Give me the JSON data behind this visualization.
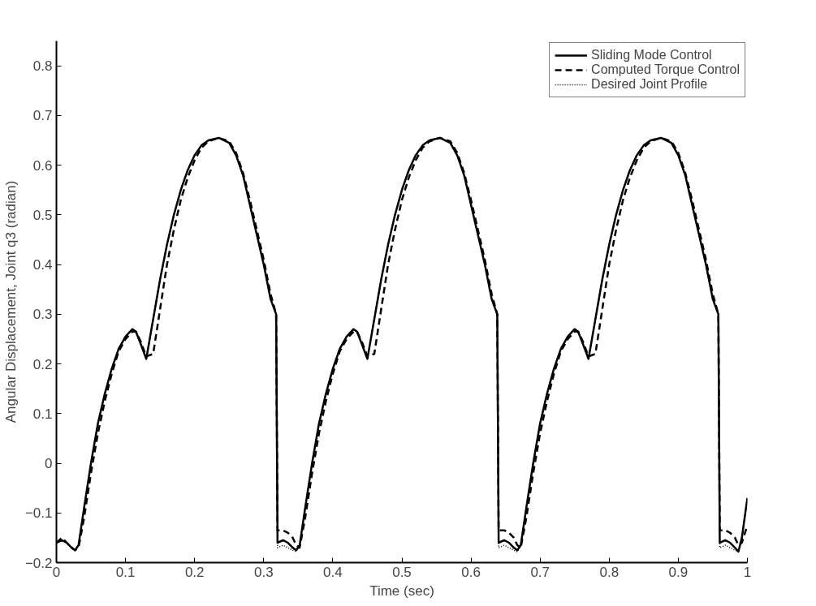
{
  "chart_data": {
    "type": "line",
    "xlabel": "Time (sec)",
    "ylabel": "Angular Displacement, Joint q3 (radian)",
    "xlim": [
      0,
      1
    ],
    "ylim": [
      -0.2,
      0.85
    ],
    "xticks": [
      0,
      0.1,
      0.2,
      0.3,
      0.4,
      0.5,
      0.6,
      0.7,
      0.8,
      0.9,
      1
    ],
    "yticks": [
      -0.2,
      -0.1,
      0,
      0.1,
      0.2,
      0.3,
      0.4,
      0.5,
      0.6,
      0.7,
      0.8
    ],
    "grid": false,
    "legend": "top right",
    "marker": "none",
    "x": [
      0,
      0.008,
      0.015,
      0.022,
      0.027,
      0.032,
      0.04,
      0.05,
      0.06,
      0.07,
      0.08,
      0.09,
      0.1,
      0.11,
      0.115,
      0.122,
      0.13,
      0.14,
      0.15,
      0.16,
      0.17,
      0.18,
      0.19,
      0.2,
      0.21,
      0.22,
      0.235,
      0.25,
      0.26,
      0.27,
      0.28,
      0.29,
      0.3,
      0.31,
      0.318,
      0.32,
      0.328,
      0.335,
      0.342,
      0.347,
      0.352,
      0.36,
      0.37,
      0.38,
      0.39,
      0.4,
      0.41,
      0.42,
      0.43,
      0.435,
      0.442,
      0.45,
      0.46,
      0.47,
      0.48,
      0.49,
      0.5,
      0.51,
      0.52,
      0.53,
      0.54,
      0.555,
      0.57,
      0.58,
      0.59,
      0.6,
      0.61,
      0.62,
      0.63,
      0.638,
      0.64,
      0.648,
      0.655,
      0.662,
      0.667,
      0.672,
      0.68,
      0.69,
      0.7,
      0.71,
      0.72,
      0.73,
      0.74,
      0.75,
      0.755,
      0.762,
      0.77,
      0.78,
      0.79,
      0.8,
      0.81,
      0.82,
      0.83,
      0.84,
      0.85,
      0.86,
      0.875,
      0.89,
      0.9,
      0.91,
      0.92,
      0.93,
      0.94,
      0.95,
      0.958,
      0.96,
      0.968,
      0.975,
      0.982,
      0.987,
      0.992,
      1.0
    ],
    "series": [
      {
        "name": "Sliding Mode Control",
        "color": "#000000",
        "line_style": "solid",
        "values": [
          -0.16,
          -0.155,
          -0.16,
          -0.17,
          -0.175,
          -0.165,
          -0.09,
          0,
          0.08,
          0.14,
          0.19,
          0.23,
          0.255,
          0.27,
          0.265,
          0.24,
          0.21,
          0.29,
          0.37,
          0.44,
          0.5,
          0.55,
          0.59,
          0.62,
          0.64,
          0.65,
          0.655,
          0.645,
          0.62,
          0.58,
          0.52,
          0.46,
          0.4,
          0.33,
          0.3,
          -0.16,
          -0.155,
          -0.16,
          -0.17,
          -0.175,
          -0.165,
          -0.09,
          0,
          0.08,
          0.14,
          0.19,
          0.23,
          0.255,
          0.27,
          0.265,
          0.24,
          0.21,
          0.29,
          0.37,
          0.44,
          0.5,
          0.55,
          0.59,
          0.62,
          0.64,
          0.65,
          0.655,
          0.645,
          0.62,
          0.58,
          0.52,
          0.46,
          0.4,
          0.33,
          0.3,
          -0.16,
          -0.155,
          -0.16,
          -0.17,
          -0.175,
          -0.165,
          -0.09,
          0,
          0.08,
          0.14,
          0.19,
          0.23,
          0.255,
          0.27,
          0.265,
          0.24,
          0.21,
          0.29,
          0.37,
          0.44,
          0.5,
          0.55,
          0.59,
          0.62,
          0.64,
          0.65,
          0.655,
          0.645,
          0.62,
          0.58,
          0.52,
          0.46,
          0.4,
          0.33,
          0.3,
          -0.16,
          -0.155,
          -0.16,
          -0.17,
          -0.178,
          -0.15,
          -0.07
        ]
      },
      {
        "name": "Computed Torque Control",
        "color": "#000000",
        "line_style": "dashed",
        "values": [
          -0.16,
          -0.15,
          -0.16,
          -0.17,
          -0.175,
          -0.17,
          -0.11,
          -0.02,
          0.06,
          0.125,
          0.18,
          0.225,
          0.25,
          0.265,
          0.265,
          0.245,
          0.215,
          0.22,
          0.31,
          0.4,
          0.47,
          0.53,
          0.575,
          0.61,
          0.635,
          0.648,
          0.655,
          0.648,
          0.625,
          0.585,
          0.53,
          0.47,
          0.41,
          0.34,
          0.3,
          -0.135,
          -0.135,
          -0.14,
          -0.15,
          -0.165,
          -0.17,
          -0.11,
          -0.02,
          0.06,
          0.125,
          0.18,
          0.225,
          0.25,
          0.265,
          0.265,
          0.245,
          0.215,
          0.22,
          0.31,
          0.4,
          0.47,
          0.53,
          0.575,
          0.61,
          0.635,
          0.648,
          0.655,
          0.648,
          0.625,
          0.585,
          0.53,
          0.47,
          0.41,
          0.34,
          0.3,
          -0.135,
          -0.135,
          -0.14,
          -0.15,
          -0.165,
          -0.17,
          -0.11,
          -0.02,
          0.06,
          0.125,
          0.18,
          0.225,
          0.25,
          0.265,
          0.265,
          0.245,
          0.215,
          0.22,
          0.31,
          0.4,
          0.47,
          0.53,
          0.575,
          0.61,
          0.635,
          0.648,
          0.655,
          0.648,
          0.625,
          0.585,
          0.53,
          0.47,
          0.41,
          0.34,
          0.3,
          -0.135,
          -0.135,
          -0.14,
          -0.15,
          -0.165,
          -0.16,
          -0.125
        ]
      },
      {
        "name": "Desired Joint Profile",
        "color": "#000000",
        "line_style": "dotted",
        "values": [
          -0.16,
          -0.155,
          -0.16,
          -0.17,
          -0.175,
          -0.165,
          -0.09,
          0,
          0.08,
          0.14,
          0.19,
          0.23,
          0.255,
          0.27,
          0.265,
          0.24,
          0.21,
          0.29,
          0.37,
          0.44,
          0.5,
          0.55,
          0.59,
          0.62,
          0.64,
          0.65,
          0.655,
          0.645,
          0.62,
          0.58,
          0.52,
          0.46,
          0.4,
          0.33,
          0.3,
          -0.17,
          -0.165,
          -0.17,
          -0.175,
          -0.178,
          -0.165,
          -0.09,
          0,
          0.08,
          0.14,
          0.19,
          0.23,
          0.255,
          0.27,
          0.265,
          0.24,
          0.21,
          0.29,
          0.37,
          0.44,
          0.5,
          0.55,
          0.59,
          0.62,
          0.64,
          0.65,
          0.655,
          0.645,
          0.62,
          0.58,
          0.52,
          0.46,
          0.4,
          0.33,
          0.3,
          -0.17,
          -0.165,
          -0.17,
          -0.175,
          -0.178,
          -0.165,
          -0.09,
          0,
          0.08,
          0.14,
          0.19,
          0.23,
          0.255,
          0.27,
          0.265,
          0.24,
          0.21,
          0.29,
          0.37,
          0.44,
          0.5,
          0.55,
          0.59,
          0.62,
          0.64,
          0.65,
          0.655,
          0.645,
          0.62,
          0.58,
          0.52,
          0.46,
          0.4,
          0.33,
          0.3,
          -0.17,
          -0.165,
          -0.17,
          -0.175,
          -0.178,
          -0.15,
          -0.07
        ]
      }
    ]
  }
}
